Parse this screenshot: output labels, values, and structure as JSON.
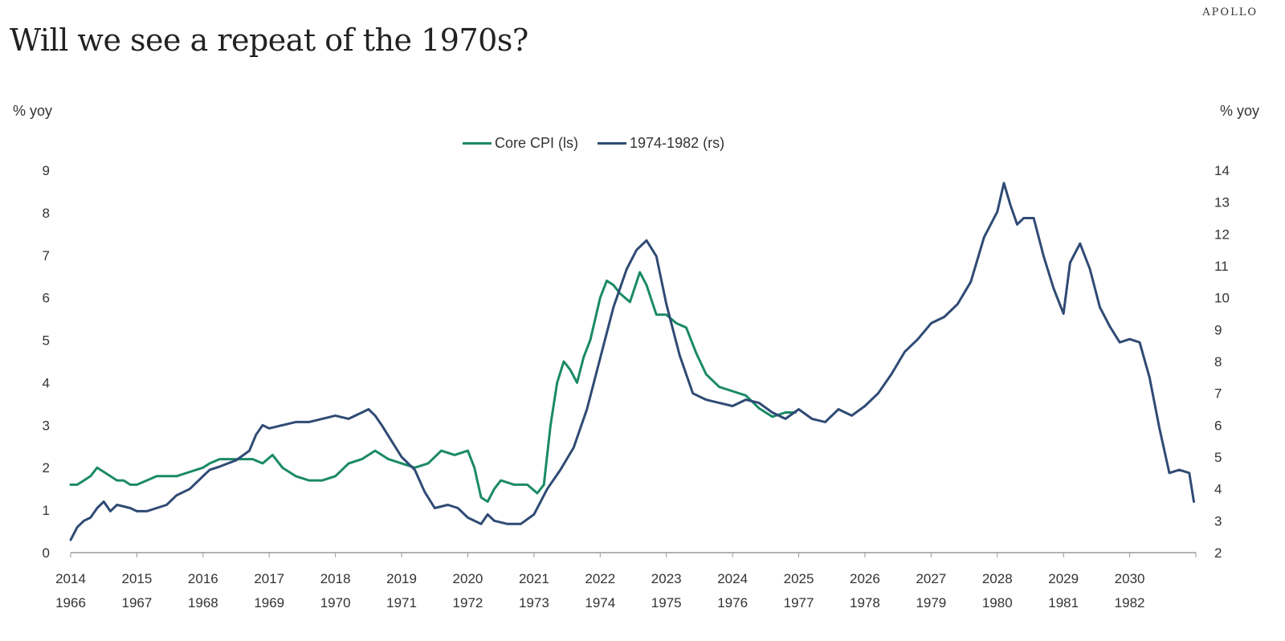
{
  "brand": "APOLLO",
  "title": "Will we see a repeat of the 1970s?",
  "colors": {
    "core_cpi": "#1a8a66",
    "seventies": "#2f4b74",
    "axis": "#9a9a9a"
  },
  "chart_data": {
    "type": "line",
    "title": "Will we see a repeat of the 1970s?",
    "ylabel_left": "% yoy",
    "ylabel_right": "% yoy",
    "y_left_ticks": [
      "0",
      "1",
      "2",
      "3",
      "4",
      "5",
      "6",
      "7",
      "8",
      "9"
    ],
    "y_right_ticks": [
      "2",
      "3",
      "4",
      "5",
      "6",
      "7",
      "8",
      "9",
      "10",
      "11",
      "12",
      "13",
      "14"
    ],
    "ylim_left": [
      0,
      9
    ],
    "ylim_right": [
      2,
      14
    ],
    "x_ticks_top": [
      "2014",
      "2015",
      "2016",
      "2017",
      "2018",
      "2019",
      "2020",
      "2021",
      "2022",
      "2023",
      "2024",
      "2025",
      "2026",
      "2027",
      "2028",
      "2029",
      "2030"
    ],
    "x_ticks_bottom": [
      "1966",
      "1967",
      "1968",
      "1969",
      "1970",
      "1971",
      "1972",
      "1973",
      "1974",
      "1975",
      "1976",
      "1977",
      "1978",
      "1979",
      "1980",
      "1981",
      "1982"
    ],
    "legend_position": "top-center",
    "grid": false,
    "series": [
      {
        "name": "Core CPI (ls)",
        "axis": "left",
        "x": [
          2014.0,
          2014.1,
          2014.2,
          2014.3,
          2014.4,
          2014.5,
          2014.6,
          2014.7,
          2014.8,
          2014.9,
          2015.0,
          2015.15,
          2015.3,
          2015.45,
          2015.6,
          2015.8,
          2016.0,
          2016.1,
          2016.25,
          2016.5,
          2016.75,
          2016.9,
          2017.05,
          2017.2,
          2017.4,
          2017.6,
          2017.8,
          2018.0,
          2018.2,
          2018.4,
          2018.6,
          2018.8,
          2019.0,
          2019.2,
          2019.4,
          2019.6,
          2019.8,
          2020.0,
          2020.1,
          2020.2,
          2020.3,
          2020.4,
          2020.5,
          2020.7,
          2020.9,
          2021.05,
          2021.15,
          2021.25,
          2021.35,
          2021.45,
          2021.55,
          2021.65,
          2021.75,
          2021.85,
          2022.0,
          2022.1,
          2022.2,
          2022.3,
          2022.45,
          2022.6,
          2022.7,
          2022.85,
          2023.0,
          2023.15,
          2023.3,
          2023.45,
          2023.6,
          2023.8,
          2024.0,
          2024.2,
          2024.4,
          2024.6,
          2024.8,
          2024.95
        ],
        "y": [
          1.6,
          1.6,
          1.7,
          1.8,
          2.0,
          1.9,
          1.8,
          1.7,
          1.7,
          1.6,
          1.6,
          1.7,
          1.8,
          1.8,
          1.8,
          1.9,
          2.0,
          2.1,
          2.2,
          2.2,
          2.2,
          2.1,
          2.3,
          2.0,
          1.8,
          1.7,
          1.7,
          1.8,
          2.1,
          2.2,
          2.4,
          2.2,
          2.1,
          2.0,
          2.1,
          2.4,
          2.3,
          2.4,
          2.0,
          1.3,
          1.2,
          1.5,
          1.7,
          1.6,
          1.6,
          1.4,
          1.6,
          3.0,
          4.0,
          4.5,
          4.3,
          4.0,
          4.6,
          5.0,
          6.0,
          6.4,
          6.3,
          6.1,
          5.9,
          6.6,
          6.3,
          5.6,
          5.6,
          5.4,
          5.3,
          4.7,
          4.2,
          3.9,
          3.8,
          3.7,
          3.4,
          3.2,
          3.3,
          3.3
        ]
      },
      {
        "name": "1974-1982 (rs)",
        "axis": "right",
        "x": [
          2014.0,
          2014.1,
          2014.2,
          2014.3,
          2014.4,
          2014.5,
          2014.6,
          2014.7,
          2014.9,
          2015.0,
          2015.15,
          2015.3,
          2015.45,
          2015.6,
          2015.8,
          2016.0,
          2016.1,
          2016.25,
          2016.5,
          2016.7,
          2016.8,
          2016.9,
          2017.0,
          2017.2,
          2017.4,
          2017.6,
          2017.8,
          2018.0,
          2018.2,
          2018.4,
          2018.5,
          2018.6,
          2018.7,
          2018.85,
          2019.0,
          2019.2,
          2019.35,
          2019.5,
          2019.7,
          2019.85,
          2020.0,
          2020.2,
          2020.3,
          2020.4,
          2020.6,
          2020.8,
          2021.0,
          2021.2,
          2021.4,
          2021.6,
          2021.8,
          2022.0,
          2022.2,
          2022.4,
          2022.55,
          2022.7,
          2022.85,
          2023.0,
          2023.2,
          2023.4,
          2023.6,
          2023.8,
          2024.0,
          2024.2,
          2024.4,
          2024.6,
          2024.8,
          2025.0,
          2025.2,
          2025.4,
          2025.6,
          2025.8,
          2026.0,
          2026.2,
          2026.4,
          2026.6,
          2026.8,
          2027.0,
          2027.2,
          2027.4,
          2027.6,
          2027.8,
          2028.0,
          2028.1,
          2028.2,
          2028.3,
          2028.4,
          2028.55,
          2028.7,
          2028.85,
          2029.0,
          2029.1,
          2029.25,
          2029.4,
          2029.55,
          2029.7,
          2029.85,
          2030.0,
          2030.15,
          2030.3,
          2030.45,
          2030.6,
          2030.75,
          2030.9,
          2030.97
        ],
        "y": [
          2.4,
          2.8,
          3.0,
          3.1,
          3.4,
          3.6,
          3.3,
          3.5,
          3.4,
          3.3,
          3.3,
          3.4,
          3.5,
          3.8,
          4.0,
          4.4,
          4.6,
          4.7,
          4.9,
          5.2,
          5.7,
          6.0,
          5.9,
          6.0,
          6.1,
          6.1,
          6.2,
          6.3,
          6.2,
          6.4,
          6.5,
          6.3,
          6.0,
          5.5,
          5.0,
          4.6,
          3.9,
          3.4,
          3.5,
          3.4,
          3.1,
          2.9,
          3.2,
          3.0,
          2.9,
          2.9,
          3.2,
          4.0,
          4.6,
          5.3,
          6.5,
          8.1,
          9.7,
          10.9,
          11.5,
          11.8,
          11.3,
          9.8,
          8.2,
          7.0,
          6.8,
          6.7,
          6.6,
          6.8,
          6.7,
          6.4,
          6.2,
          6.5,
          6.2,
          6.1,
          6.5,
          6.3,
          6.6,
          7.0,
          7.6,
          8.3,
          8.7,
          9.2,
          9.4,
          9.8,
          10.5,
          11.9,
          12.7,
          13.6,
          12.9,
          12.3,
          12.5,
          12.5,
          11.3,
          10.3,
          9.5,
          11.1,
          11.7,
          10.9,
          9.7,
          9.1,
          8.6,
          8.7,
          8.6,
          7.5,
          5.9,
          4.5,
          4.6,
          4.5,
          3.6
        ]
      }
    ]
  }
}
